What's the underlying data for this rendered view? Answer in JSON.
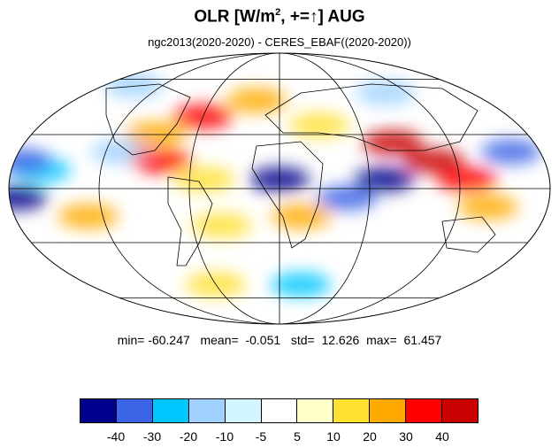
{
  "title": {
    "main": "OLR [W/m",
    "sup": "2",
    "tail": ", +=↑] AUG"
  },
  "subtitle": "ngc2013(2020-2020) - CERES_EBAF((2020-2020))",
  "stats": {
    "min_label": "min=",
    "min": "-60.247",
    "mean_label": "mean=",
    "mean": "-0.051",
    "std_label": "std=",
    "std": "12.626",
    "max_label": "max=",
    "max": "61.457"
  },
  "colorbar": {
    "colors": [
      "#00008c",
      "#3c64e6",
      "#00c8ff",
      "#a0d2ff",
      "#d2f5ff",
      "#ffffff",
      "#ffffc8",
      "#ffe132",
      "#ffaa00",
      "#ff0000",
      "#c80000"
    ],
    "labels": [
      "-40",
      "-30",
      "-20",
      "-10",
      "-5",
      "5",
      "10",
      "20",
      "30",
      "40"
    ]
  },
  "map": {
    "projection": "Mollweide",
    "anomalies": [
      {
        "lon": -160,
        "lat": 10,
        "level": 2
      },
      {
        "lon": -175,
        "lat": 15,
        "level": 1
      },
      {
        "lon": -175,
        "lat": -5,
        "level": 0
      },
      {
        "lon": -130,
        "lat": -15,
        "level": 8
      },
      {
        "lon": -110,
        "lat": 20,
        "level": 3
      },
      {
        "lon": -90,
        "lat": 30,
        "level": 8
      },
      {
        "lon": -80,
        "lat": 15,
        "level": 9
      },
      {
        "lon": -60,
        "lat": 40,
        "level": 9
      },
      {
        "lon": -50,
        "lat": 5,
        "level": 7
      },
      {
        "lon": -40,
        "lat": -20,
        "level": 7
      },
      {
        "lon": -20,
        "lat": 50,
        "level": 8
      },
      {
        "lon": 0,
        "lat": 5,
        "level": 0
      },
      {
        "lon": 15,
        "lat": -15,
        "level": 8
      },
      {
        "lon": 30,
        "lat": 35,
        "level": 7
      },
      {
        "lon": 45,
        "lat": -5,
        "level": 1
      },
      {
        "lon": 70,
        "lat": 5,
        "level": 0
      },
      {
        "lon": 80,
        "lat": 25,
        "level": 10
      },
      {
        "lon": 105,
        "lat": 15,
        "level": 10
      },
      {
        "lon": 125,
        "lat": 5,
        "level": 9
      },
      {
        "lon": 140,
        "lat": -10,
        "level": 8
      },
      {
        "lon": 160,
        "lat": 20,
        "level": 1
      },
      {
        "lon": -150,
        "lat": 60,
        "level": 3
      },
      {
        "lon": 100,
        "lat": 55,
        "level": 3
      },
      {
        "lon": 20,
        "lat": -55,
        "level": 2
      },
      {
        "lon": -60,
        "lat": -55,
        "level": 7
      }
    ]
  }
}
